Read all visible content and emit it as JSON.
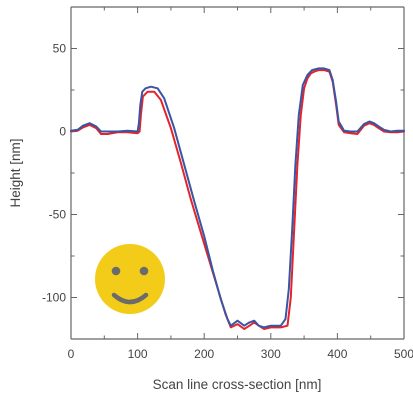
{
  "chart_data": {
    "type": "line",
    "title": "",
    "xlabel": "Scan line cross-section [nm]",
    "ylabel": "Height [nm]",
    "xlim": [
      0,
      500
    ],
    "ylim": [
      -125,
      75
    ],
    "xticks": [
      0,
      100,
      200,
      300,
      400,
      500
    ],
    "yticks": [
      -100,
      -50,
      0,
      50
    ],
    "xtick_labels": [
      "0",
      "100",
      "200",
      "300",
      "400",
      "500"
    ],
    "ytick_labels": [
      "-100",
      "-50",
      "0",
      "50"
    ],
    "grid": false,
    "legend": "none",
    "colors": {
      "red": "#e3242b",
      "blue": "#3a55a4",
      "smiley": "#f2cc19",
      "smiley_features": "#6b6b6b",
      "axis": "#666666"
    },
    "icon": "smiley-face-icon",
    "series": [
      {
        "color": "#e3242b",
        "x": [
          0,
          10,
          18,
          28,
          38,
          45,
          55,
          70,
          85,
          100,
          103,
          105,
          108,
          115,
          125,
          135,
          150,
          165,
          180,
          195,
          210,
          222,
          232,
          240,
          250,
          260,
          268,
          275,
          282,
          290,
          300,
          315,
          325,
          330,
          335,
          340,
          345,
          350,
          355,
          360,
          365,
          372,
          380,
          388,
          393,
          398,
          402,
          410,
          420,
          430,
          440,
          448,
          455,
          462,
          470,
          480,
          490,
          500
        ],
        "y": [
          0,
          0.5,
          2.5,
          4,
          2,
          -1.5,
          -1.5,
          -0.5,
          -0.5,
          -1,
          0,
          10,
          21,
          24,
          24,
          19,
          2,
          -19,
          -41,
          -61,
          -81,
          -97,
          -110,
          -118,
          -116,
          -119,
          -117,
          -115,
          -117,
          -119,
          -118,
          -118,
          -117,
          -100,
          -60,
          -20,
          10,
          26,
          32,
          35,
          36,
          37,
          37,
          36,
          30,
          16,
          4,
          -0.5,
          -1,
          -1.5,
          3.5,
          5,
          4,
          2,
          0,
          -0.5,
          -0.5,
          0
        ]
      },
      {
        "color": "#3a55a4",
        "x": [
          0,
          10,
          18,
          28,
          38,
          45,
          55,
          70,
          85,
          100,
          102,
          104,
          107,
          112,
          120,
          130,
          140,
          155,
          170,
          185,
          200,
          213,
          225,
          235,
          240,
          250,
          260,
          268,
          275,
          282,
          290,
          300,
          315,
          322,
          327,
          332,
          337,
          342,
          348,
          355,
          362,
          372,
          380,
          388,
          393,
          398,
          402,
          410,
          420,
          430,
          440,
          448,
          455,
          462,
          470,
          480,
          490,
          500
        ],
        "y": [
          0.5,
          1,
          3.5,
          5,
          3,
          0,
          0,
          0,
          0.5,
          0,
          5,
          16,
          24,
          26,
          27,
          26,
          20,
          2,
          -20,
          -42,
          -63,
          -84,
          -101,
          -113,
          -117,
          -114,
          -117,
          -115,
          -114,
          -117,
          -118,
          -117,
          -117,
          -113,
          -95,
          -60,
          -20,
          10,
          28,
          34,
          37,
          38,
          38,
          37,
          31,
          18,
          6,
          0.5,
          0,
          0,
          4.5,
          6,
          5,
          3,
          1,
          0,
          0.5,
          0.5
        ]
      }
    ]
  }
}
